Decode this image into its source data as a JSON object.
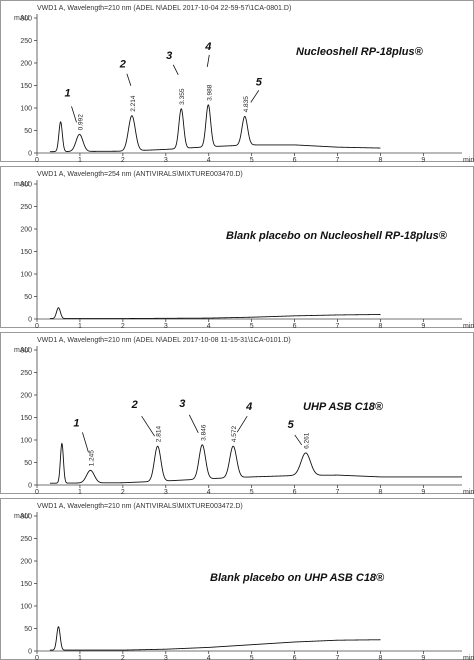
{
  "chart_data": [
    {
      "type": "line",
      "header": "VWD1 A, Wavelength=210 nm (ADEL N\\ADEL 2017-10-04 22-59-57\\1CA-0801.D)",
      "ylabel": "mAU",
      "xlabel": "min",
      "xlim": [
        0,
        9.9
      ],
      "ylim": [
        0,
        300
      ],
      "xticks": [
        "0",
        "1",
        "2",
        "3",
        "4",
        "5",
        "6",
        "7",
        "8",
        "9"
      ],
      "yticks": [
        "0",
        "50",
        "100",
        "150",
        "200",
        "250",
        "300"
      ],
      "annotation": "Nucleoshell RP-18plus®",
      "baseline": [
        [
          0.3,
          3
        ],
        [
          2.0,
          4
        ],
        [
          3.0,
          8
        ],
        [
          4.0,
          14
        ],
        [
          5.0,
          18
        ],
        [
          6.0,
          18
        ],
        [
          7.0,
          13
        ],
        [
          8.0,
          11
        ]
      ],
      "peaks": [
        {
          "label": "",
          "rt": "",
          "x": 0.55,
          "height": 66,
          "width": 0.04
        },
        {
          "label": "1",
          "rt": "0.992",
          "x": 0.99,
          "height": 38,
          "width": 0.08
        },
        {
          "label": "2",
          "rt": "2.214",
          "x": 2.21,
          "height": 78,
          "width": 0.08
        },
        {
          "label": "3",
          "rt": "3.355",
          "x": 3.36,
          "height": 88,
          "width": 0.055
        },
        {
          "label": "4",
          "rt": "3.988",
          "x": 3.99,
          "height": 93,
          "width": 0.055
        },
        {
          "label": "5",
          "rt": "4.835",
          "x": 4.84,
          "height": 64,
          "width": 0.065
        }
      ]
    },
    {
      "type": "line",
      "header": "VWD1 A, Wavelength=254 nm (ANTIVIRALS\\MIXTURE003470.D)",
      "ylabel": "mAU",
      "xlabel": "min",
      "xlim": [
        0,
        9.9
      ],
      "ylim": [
        0,
        300
      ],
      "xticks": [
        "0",
        "1",
        "2",
        "3",
        "4",
        "5",
        "6",
        "7",
        "8",
        "9"
      ],
      "yticks": [
        "0",
        "50",
        "100",
        "150",
        "200",
        "250",
        "300"
      ],
      "annotation": "Blank placebo on Nucleoshell RP-18plus®",
      "baseline": [
        [
          0.3,
          1
        ],
        [
          2.0,
          1
        ],
        [
          4.0,
          2
        ],
        [
          5.0,
          4
        ],
        [
          6.0,
          7
        ],
        [
          7.0,
          9
        ],
        [
          8.0,
          10
        ]
      ],
      "peaks": [
        {
          "label": "",
          "rt": "",
          "x": 0.5,
          "height": 24,
          "width": 0.045
        }
      ]
    },
    {
      "type": "line",
      "header": "VWD1 A, Wavelength=210 nm (ADEL N\\ADEL 2017-10-08 11-15-31\\1CA-0101.D)",
      "ylabel": "mAU",
      "xlabel": "min",
      "xlim": [
        0,
        9.9
      ],
      "ylim": [
        0,
        300
      ],
      "xticks": [
        "0",
        "1",
        "2",
        "3",
        "4",
        "5",
        "6",
        "7",
        "8",
        "9"
      ],
      "yticks": [
        "0",
        "50",
        "100",
        "150",
        "200",
        "250",
        "300"
      ],
      "annotation": "UHP ASB C18®",
      "baseline": [
        [
          0.3,
          4
        ],
        [
          2.0,
          5
        ],
        [
          3.0,
          9
        ],
        [
          4.0,
          14
        ],
        [
          5.0,
          18
        ],
        [
          6.0,
          21
        ],
        [
          7.0,
          22
        ],
        [
          8.0,
          18
        ],
        [
          8.4,
          18
        ],
        [
          9.9,
          18
        ]
      ],
      "peaks": [
        {
          "label": "",
          "rt": "",
          "x": 0.58,
          "height": 88,
          "width": 0.035
        },
        {
          "label": "1",
          "rt": "1.245",
          "x": 1.245,
          "height": 28,
          "width": 0.09
        },
        {
          "label": "2",
          "rt": "2.814",
          "x": 2.81,
          "height": 78,
          "width": 0.075
        },
        {
          "label": "3",
          "rt": "3.846",
          "x": 3.85,
          "height": 76,
          "width": 0.075
        },
        {
          "label": "4",
          "rt": "4.572",
          "x": 4.57,
          "height": 70,
          "width": 0.08
        },
        {
          "label": "5",
          "rt": "6.261",
          "x": 6.26,
          "height": 50,
          "width": 0.11
        }
      ]
    },
    {
      "type": "line",
      "header": "VWD1 A, Wavelength=210 nm (ANTIVIRALS\\MIXTURE003472.D)",
      "ylabel": "mAU",
      "xlabel": "min",
      "xlim": [
        0,
        9.9
      ],
      "ylim": [
        0,
        300
      ],
      "xticks": [
        "0",
        "1",
        "2",
        "3",
        "4",
        "5",
        "6",
        "7",
        "8",
        "9"
      ],
      "yticks": [
        "0",
        "50",
        "100",
        "150",
        "200",
        "250",
        "300"
      ],
      "annotation": "Blank placebo on UHP ASB C18®",
      "baseline": [
        [
          0.3,
          2
        ],
        [
          2.0,
          2
        ],
        [
          3.0,
          4
        ],
        [
          4.0,
          8
        ],
        [
          5.0,
          14
        ],
        [
          6.0,
          20
        ],
        [
          7.0,
          24
        ],
        [
          8.0,
          25
        ]
      ],
      "peaks": [
        {
          "label": "",
          "rt": "",
          "x": 0.5,
          "height": 52,
          "width": 0.04
        }
      ]
    }
  ]
}
